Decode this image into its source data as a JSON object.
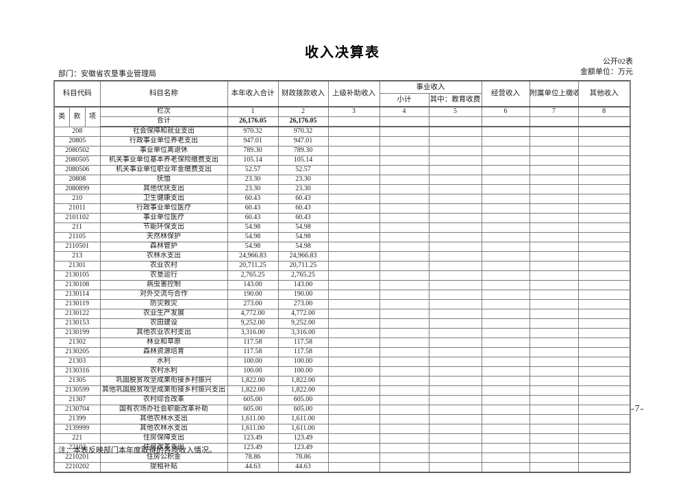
{
  "page": {
    "title": "收入决算表",
    "table_code": "公开02表",
    "unit_label": "金额单位：万元",
    "department": "部门：安徽省农垦事业管理局",
    "note": "注：本表反映部门本年度取得的各项收入情况。",
    "page_number": "-7-"
  },
  "table": {
    "headers": {
      "subject_code": "科目代码",
      "code_class": "类",
      "code_section": "款",
      "code_item": "项",
      "subject_name": "科目名称",
      "total_income": "本年收入合计",
      "fiscal_income": "财政拨款收入",
      "superior_subsidy": "上级补助收入",
      "business_income": "事业收入",
      "business_subtotal": "小计",
      "education_fee": "其中：教育收费",
      "operating_income": "经营收入",
      "affiliated_income": "附属单位上缴收入",
      "other_income": "其他收入",
      "column_index_label": "栏次",
      "column_numbers": [
        "1",
        "2",
        "3",
        "4",
        "5",
        "6",
        "7",
        "8"
      ]
    },
    "total_row": {
      "label": "合计",
      "total": "26,176.05",
      "fiscal": "26,176.05",
      "superior": "",
      "subtotal": "",
      "education": "",
      "operating": "",
      "affiliated": "",
      "other": ""
    },
    "rows": [
      {
        "code": "208",
        "name": "社会保障和就业支出",
        "total": "970.32",
        "fiscal": "970.32"
      },
      {
        "code": "20805",
        "name": "行政事业单位养老支出",
        "total": "947.01",
        "fiscal": "947.01"
      },
      {
        "code": "2080502",
        "name": "事业单位离退休",
        "total": "789.30",
        "fiscal": "789.30"
      },
      {
        "code": "2080505",
        "name": "机关事业单位基本养老保险缴费支出",
        "total": "105.14",
        "fiscal": "105.14"
      },
      {
        "code": "2080506",
        "name": "机关事业单位职业年金缴费支出",
        "total": "52.57",
        "fiscal": "52.57"
      },
      {
        "code": "20808",
        "name": "抚恤",
        "total": "23.30",
        "fiscal": "23.30"
      },
      {
        "code": "2080899",
        "name": "其他优抚支出",
        "total": "23.30",
        "fiscal": "23.30"
      },
      {
        "code": "210",
        "name": "卫生健康支出",
        "total": "60.43",
        "fiscal": "60.43"
      },
      {
        "code": "21011",
        "name": "行政事业单位医疗",
        "total": "60.43",
        "fiscal": "60.43"
      },
      {
        "code": "2101102",
        "name": "事业单位医疗",
        "total": "60.43",
        "fiscal": "60.43"
      },
      {
        "code": "211",
        "name": "节能环保支出",
        "total": "54.98",
        "fiscal": "54.98"
      },
      {
        "code": "21105",
        "name": "天然林保护",
        "total": "54.98",
        "fiscal": "54.98"
      },
      {
        "code": "2110501",
        "name": "森林管护",
        "total": "54.98",
        "fiscal": "54.98"
      },
      {
        "code": "213",
        "name": "农林水支出",
        "total": "24,966.83",
        "fiscal": "24,966.83"
      },
      {
        "code": "21301",
        "name": "农业农村",
        "total": "20,711.25",
        "fiscal": "20,711.25"
      },
      {
        "code": "2130105",
        "name": "农垦运行",
        "total": "2,765.25",
        "fiscal": "2,765.25"
      },
      {
        "code": "2130108",
        "name": "病虫害控制",
        "total": "143.00",
        "fiscal": "143.00"
      },
      {
        "code": "2130114",
        "name": "对外交流与合作",
        "total": "190.00",
        "fiscal": "190.00"
      },
      {
        "code": "2130119",
        "name": "防灾救灾",
        "total": "273.00",
        "fiscal": "273.00"
      },
      {
        "code": "2130122",
        "name": "农业生产发展",
        "total": "4,772.00",
        "fiscal": "4,772.00"
      },
      {
        "code": "2130153",
        "name": "农田建设",
        "total": "9,252.00",
        "fiscal": "9,252.00"
      },
      {
        "code": "2130199",
        "name": "其他农业农村支出",
        "total": "3,316.00",
        "fiscal": "3,316.00"
      },
      {
        "code": "21302",
        "name": "林业和草原",
        "total": "117.58",
        "fiscal": "117.58"
      },
      {
        "code": "2130205",
        "name": "森林资源培育",
        "total": "117.58",
        "fiscal": "117.58"
      },
      {
        "code": "21303",
        "name": "水利",
        "total": "100.00",
        "fiscal": "100.00"
      },
      {
        "code": "2130316",
        "name": "农村水利",
        "total": "100.00",
        "fiscal": "100.00"
      },
      {
        "code": "21305",
        "name": "巩固脱贫攻坚成果衔接乡村振兴",
        "total": "1,822.00",
        "fiscal": "1,822.00"
      },
      {
        "code": "2130599",
        "name": "其他巩固脱贫攻坚成果衔接乡村振兴支出",
        "total": "1,822.00",
        "fiscal": "1,822.00"
      },
      {
        "code": "21307",
        "name": "农村综合改革",
        "total": "605.00",
        "fiscal": "605.00"
      },
      {
        "code": "2130704",
        "name": "国有农场办社会职能改革补助",
        "total": "605.00",
        "fiscal": "605.00"
      },
      {
        "code": "21399",
        "name": "其他农林水支出",
        "total": "1,611.00",
        "fiscal": "1,611.00"
      },
      {
        "code": "2139999",
        "name": "其他农林水支出",
        "total": "1,611.00",
        "fiscal": "1,611.00"
      },
      {
        "code": "221",
        "name": "住房保障支出",
        "total": "123.49",
        "fiscal": "123.49"
      },
      {
        "code": "22102",
        "name": "住房改革支出",
        "total": "123.49",
        "fiscal": "123.49"
      },
      {
        "code": "2210201",
        "name": "住房公积金",
        "total": "78.86",
        "fiscal": "78.86"
      },
      {
        "code": "2210202",
        "name": "提租补贴",
        "total": "44.63",
        "fiscal": "44.63"
      }
    ]
  }
}
